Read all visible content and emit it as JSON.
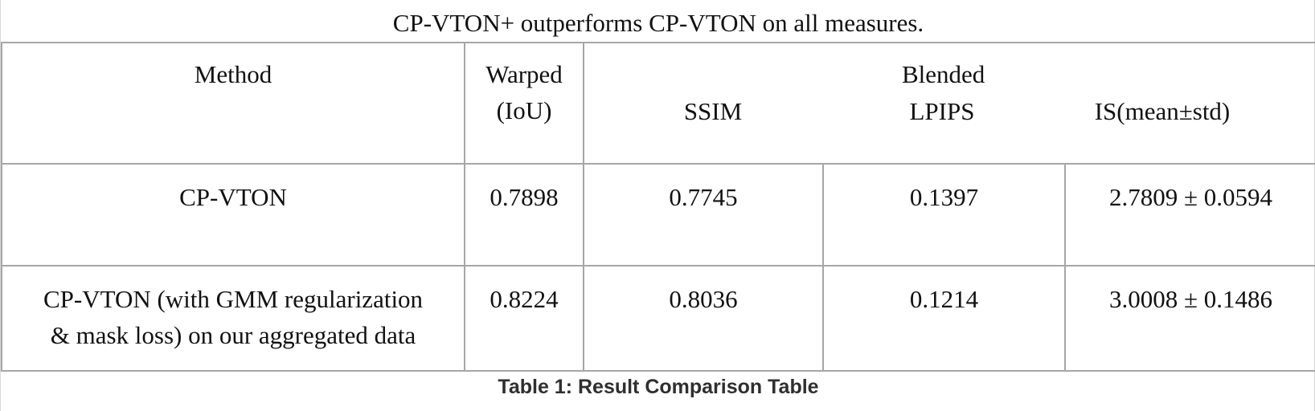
{
  "table_title": "CP-VTON+ outperforms CP-VTON on all measures.",
  "headers": {
    "method": "Method",
    "warped_line1": "Warped",
    "warped_line2": "(IoU)",
    "blended": "Blended",
    "ssim": "SSIM",
    "lpips": "LPIPS",
    "is": "IS(mean±std)"
  },
  "rows": [
    {
      "method_line1": "CP-VTON",
      "method_line2": "",
      "warped_iou": "0.7898",
      "ssim": "0.7745",
      "lpips": "0.1397",
      "is": "2.7809 ± 0.0594"
    },
    {
      "method_line1": "CP-VTON (with GMM regularization",
      "method_line2": "& mask loss) on our aggregated data",
      "warped_iou": "0.8224",
      "ssim": "0.8036",
      "lpips": "0.1214",
      "is": "3.0008 ± 0.1486"
    }
  ],
  "caption": "Table 1: Result Comparison Table"
}
